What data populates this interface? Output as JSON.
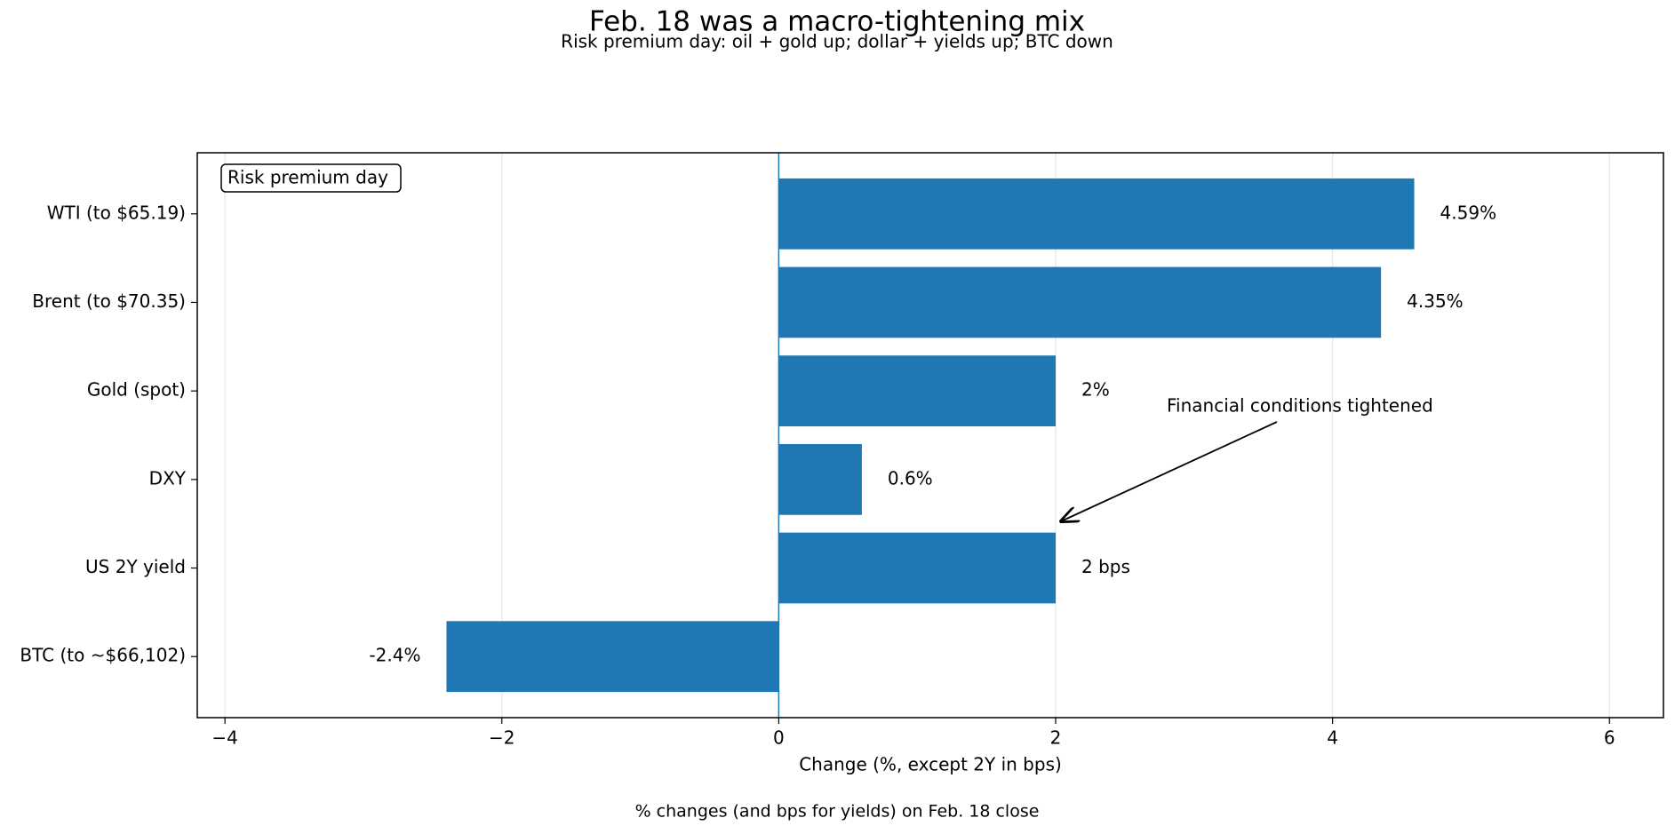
{
  "chart_data": {
    "type": "barh",
    "title": "Feb. 18 was a macro-tightening mix",
    "subtitle": "Risk premium day: oil + gold up; dollar + yields up; BTC down",
    "xlabel": "Change (%, except 2Y in bps)",
    "footer": "% changes (and bps for yields) on Feb. 18 close",
    "box_label": "Risk premium day",
    "annotation": "Financial conditions tightened",
    "categories": [
      "WTI (to $65.19)",
      "Brent (to $70.35)",
      "Gold (spot)",
      "DXY",
      "US 2Y yield",
      "BTC (to ~$66,102)"
    ],
    "values": [
      4.59,
      4.35,
      2,
      0.6,
      2,
      -2.4
    ],
    "value_labels": [
      "4.59%",
      "4.35%",
      "2%",
      "0.6%",
      "2 bps",
      "-2.4%"
    ],
    "color": "#1f77b4",
    "xlim": [
      -4.2,
      6.39
    ],
    "xticks": [
      {
        "value": -4,
        "label": "−4"
      },
      {
        "value": -2,
        "label": "−2"
      },
      0,
      2,
      4,
      6
    ],
    "grid": true
  }
}
